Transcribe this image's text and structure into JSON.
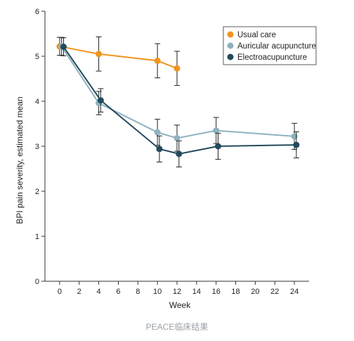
{
  "chart_data": {
    "type": "line",
    "title": "",
    "xlabel": "Week",
    "ylabel": "BPI pain severity, estimated mean",
    "xlim": [
      -1.5,
      25.5
    ],
    "ylim": [
      0,
      6
    ],
    "xticks": [
      0,
      2,
      4,
      6,
      8,
      10,
      12,
      14,
      16,
      18,
      20,
      22,
      24
    ],
    "yticks": [
      0,
      1,
      2,
      3,
      4,
      5,
      6
    ],
    "grid": false,
    "legend_position": "top-right",
    "series": [
      {
        "name": "Usual care",
        "color": "#f0941e",
        "points": [
          {
            "x": 0,
            "y": 5.22,
            "lo": 5.02,
            "hi": 5.42
          },
          {
            "x": 4,
            "y": 5.05,
            "lo": 4.67,
            "hi": 5.43
          },
          {
            "x": 10,
            "y": 4.9,
            "lo": 4.52,
            "hi": 5.28
          },
          {
            "x": 12,
            "y": 4.73,
            "lo": 4.35,
            "hi": 5.11
          }
        ]
      },
      {
        "name": "Auricular acupuncture",
        "color": "#8fb1c0",
        "points": [
          {
            "x": 0.2,
            "y": 5.22,
            "lo": 5.02,
            "hi": 5.42
          },
          {
            "x": 4,
            "y": 3.96,
            "lo": 3.7,
            "hi": 4.22
          },
          {
            "x": 10,
            "y": 3.31,
            "lo": 3.02,
            "hi": 3.6
          },
          {
            "x": 12,
            "y": 3.18,
            "lo": 2.89,
            "hi": 3.47
          },
          {
            "x": 16,
            "y": 3.35,
            "lo": 3.06,
            "hi": 3.64
          },
          {
            "x": 24,
            "y": 3.22,
            "lo": 2.93,
            "hi": 3.51
          }
        ]
      },
      {
        "name": "Electroacupuncture",
        "color": "#234a5c",
        "points": [
          {
            "x": 0.4,
            "y": 5.21,
            "lo": 5.01,
            "hi": 5.41
          },
          {
            "x": 4.2,
            "y": 4.02,
            "lo": 3.76,
            "hi": 4.28
          },
          {
            "x": 10.2,
            "y": 2.94,
            "lo": 2.65,
            "hi": 3.23
          },
          {
            "x": 12.2,
            "y": 2.83,
            "lo": 2.54,
            "hi": 3.12
          },
          {
            "x": 16.2,
            "y": 3.0,
            "lo": 2.71,
            "hi": 3.29
          },
          {
            "x": 24.2,
            "y": 3.03,
            "lo": 2.74,
            "hi": 3.32
          }
        ]
      }
    ]
  },
  "caption": "PEACE临床结果"
}
